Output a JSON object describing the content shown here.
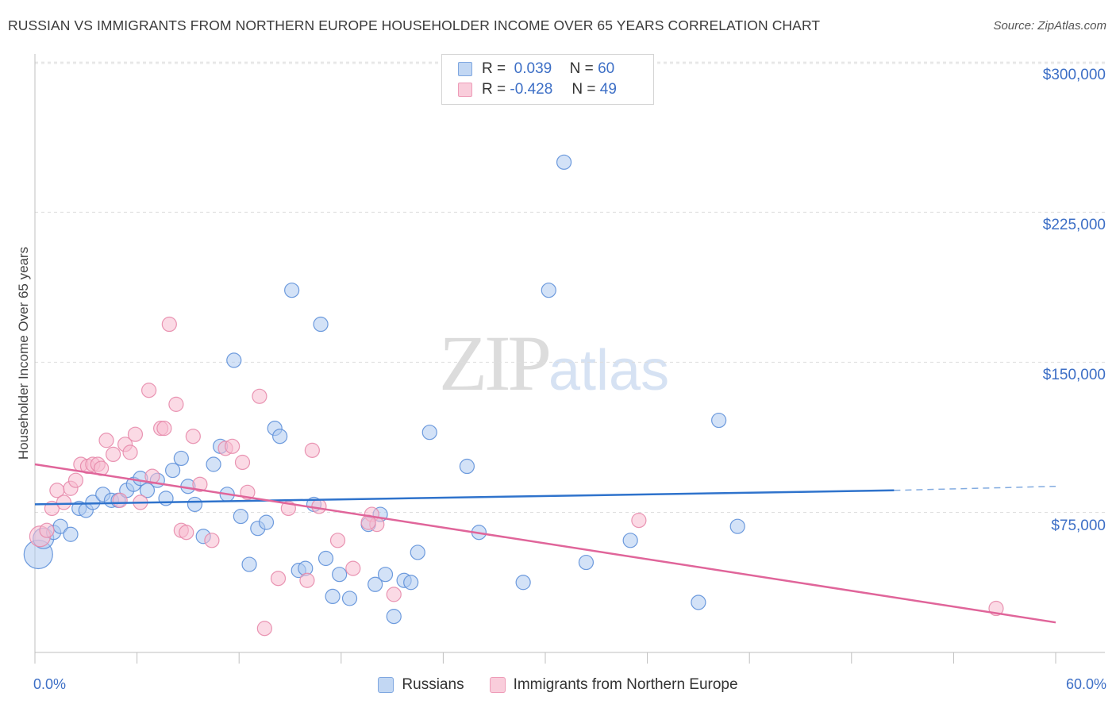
{
  "title": "RUSSIAN VS IMMIGRANTS FROM NORTHERN EUROPE HOUSEHOLDER INCOME OVER 65 YEARS CORRELATION CHART",
  "source": "Source: ZipAtlas.com",
  "watermark": {
    "zip": "ZIP",
    "atlas": "atlas"
  },
  "colors": {
    "blue": "#3d6fc6",
    "blue_fill": "#aecbf0",
    "blue_line": "#2f73cc",
    "pink_fill": "#f7bccf",
    "pink_line": "#e0659a"
  },
  "legend": {
    "rows": [
      {
        "r_label": "R =",
        "r_value": "0.039",
        "n_label": "N =",
        "n_value": "60"
      },
      {
        "r_label": "R =",
        "r_value": "-0.428",
        "n_label": "N =",
        "n_value": "49"
      }
    ]
  },
  "bottom_legend": [
    "Russians",
    "Immigrants from Northern Europe"
  ],
  "chart_data": {
    "type": "scatter",
    "title": "RUSSIAN VS IMMIGRANTS FROM NORTHERN EUROPE HOUSEHOLDER INCOME OVER 65 YEARS CORRELATION CHART",
    "xlabel": "",
    "ylabel": "Householder Income Over 65 years",
    "xlim": [
      0,
      60
    ],
    "ylim": [
      5000,
      312000
    ],
    "x_tick_labels": [
      "0.0%",
      "60.0%"
    ],
    "y_ticks": [
      {
        "value": 75000,
        "label": "$75,000"
      },
      {
        "value": 150000,
        "label": "$150,000"
      },
      {
        "value": 225000,
        "label": "$225,000"
      },
      {
        "value": 300000,
        "label": "$300,000"
      }
    ],
    "series": [
      {
        "name": "Russians",
        "R": 0.039,
        "N": 60,
        "trend": {
          "x0": 0,
          "y0": 79000,
          "x1": 50.5,
          "y1": 86000,
          "dash_to_x": 60,
          "dash_to_y": 88000
        },
        "points": [
          [
            0.2,
            54000,
            3
          ],
          [
            0.5,
            62000,
            2
          ],
          [
            1.1,
            65000,
            1
          ],
          [
            1.5,
            68000,
            1
          ],
          [
            2.1,
            64000,
            1
          ],
          [
            2.6,
            77000,
            1
          ],
          [
            3.0,
            76000,
            1
          ],
          [
            3.4,
            80000,
            1
          ],
          [
            4.0,
            84000,
            1
          ],
          [
            4.5,
            81000,
            1
          ],
          [
            4.9,
            81000,
            1
          ],
          [
            5.4,
            86000,
            1
          ],
          [
            5.8,
            89000,
            1
          ],
          [
            6.2,
            92000,
            1
          ],
          [
            6.6,
            86000,
            1
          ],
          [
            7.2,
            91000,
            1
          ],
          [
            7.7,
            82000,
            1
          ],
          [
            8.1,
            96000,
            1
          ],
          [
            8.6,
            102000,
            1
          ],
          [
            9.0,
            88000,
            1
          ],
          [
            9.4,
            79000,
            1
          ],
          [
            9.9,
            63000,
            1
          ],
          [
            10.5,
            99000,
            1
          ],
          [
            10.9,
            108000,
            1
          ],
          [
            11.3,
            84000,
            1
          ],
          [
            11.7,
            151000,
            1
          ],
          [
            12.1,
            73000,
            1
          ],
          [
            12.6,
            49000,
            1
          ],
          [
            13.1,
            67000,
            1
          ],
          [
            13.6,
            70000,
            1
          ],
          [
            14.1,
            117000,
            1
          ],
          [
            14.4,
            113000,
            1
          ],
          [
            15.1,
            186000,
            1
          ],
          [
            15.5,
            46000,
            1
          ],
          [
            15.9,
            47000,
            1
          ],
          [
            16.4,
            79000,
            1
          ],
          [
            16.8,
            169000,
            1
          ],
          [
            17.1,
            52000,
            1
          ],
          [
            17.5,
            33000,
            1
          ],
          [
            17.9,
            44000,
            1
          ],
          [
            18.5,
            32000,
            1
          ],
          [
            19.6,
            69000,
            1
          ],
          [
            20.0,
            39000,
            1
          ],
          [
            20.3,
            74000,
            1
          ],
          [
            20.6,
            44000,
            1
          ],
          [
            21.1,
            23000,
            1
          ],
          [
            21.7,
            41000,
            1
          ],
          [
            22.1,
            40000,
            1
          ],
          [
            22.5,
            55000,
            1
          ],
          [
            23.2,
            115000,
            1
          ],
          [
            25.4,
            98000,
            1
          ],
          [
            26.1,
            65000,
            1
          ],
          [
            28.7,
            40000,
            1
          ],
          [
            30.2,
            186000,
            1
          ],
          [
            31.1,
            250000,
            1
          ],
          [
            32.4,
            50000,
            1
          ],
          [
            35.0,
            61000,
            1
          ],
          [
            39.0,
            30000,
            1
          ],
          [
            40.2,
            121000,
            1
          ],
          [
            41.3,
            68000,
            1
          ]
        ]
      },
      {
        "name": "Immigrants from Northern Europe",
        "R": -0.428,
        "N": 49,
        "trend": {
          "x0": 0,
          "y0": 99000,
          "x1": 60,
          "y1": 20000
        },
        "points": [
          [
            0.3,
            63000,
            2
          ],
          [
            0.7,
            66000,
            1
          ],
          [
            1.0,
            77000,
            1
          ],
          [
            1.3,
            86000,
            1
          ],
          [
            1.7,
            80000,
            1
          ],
          [
            2.1,
            87000,
            1
          ],
          [
            2.4,
            91000,
            1
          ],
          [
            2.7,
            99000,
            1
          ],
          [
            3.1,
            98000,
            1
          ],
          [
            3.4,
            99000,
            1
          ],
          [
            3.7,
            99000,
            1
          ],
          [
            3.9,
            97000,
            1
          ],
          [
            4.2,
            111000,
            1
          ],
          [
            4.6,
            104000,
            1
          ],
          [
            5.0,
            81000,
            1
          ],
          [
            5.3,
            109000,
            1
          ],
          [
            5.6,
            105000,
            1
          ],
          [
            5.9,
            114000,
            1
          ],
          [
            6.2,
            80000,
            1
          ],
          [
            6.7,
            136000,
            1
          ],
          [
            6.9,
            93000,
            1
          ],
          [
            7.4,
            117000,
            1
          ],
          [
            7.6,
            117000,
            1
          ],
          [
            7.9,
            169000,
            1
          ],
          [
            8.3,
            129000,
            1
          ],
          [
            8.6,
            66000,
            1
          ],
          [
            8.9,
            65000,
            1
          ],
          [
            9.3,
            113000,
            1
          ],
          [
            9.7,
            89000,
            1
          ],
          [
            10.4,
            61000,
            1
          ],
          [
            11.2,
            107000,
            1
          ],
          [
            11.6,
            108000,
            1
          ],
          [
            12.2,
            100000,
            1
          ],
          [
            12.5,
            85000,
            1
          ],
          [
            13.2,
            133000,
            1
          ],
          [
            13.5,
            17000,
            1
          ],
          [
            14.3,
            42000,
            1
          ],
          [
            14.9,
            77000,
            1
          ],
          [
            16.0,
            41000,
            1
          ],
          [
            16.3,
            106000,
            1
          ],
          [
            16.7,
            78000,
            1
          ],
          [
            17.8,
            61000,
            1
          ],
          [
            18.7,
            47000,
            1
          ],
          [
            19.8,
            74000,
            1
          ],
          [
            20.1,
            69000,
            1
          ],
          [
            21.1,
            34000,
            1
          ],
          [
            35.5,
            71000,
            1
          ],
          [
            56.5,
            27000,
            1
          ],
          [
            19.6,
            70000,
            1
          ]
        ]
      }
    ]
  }
}
